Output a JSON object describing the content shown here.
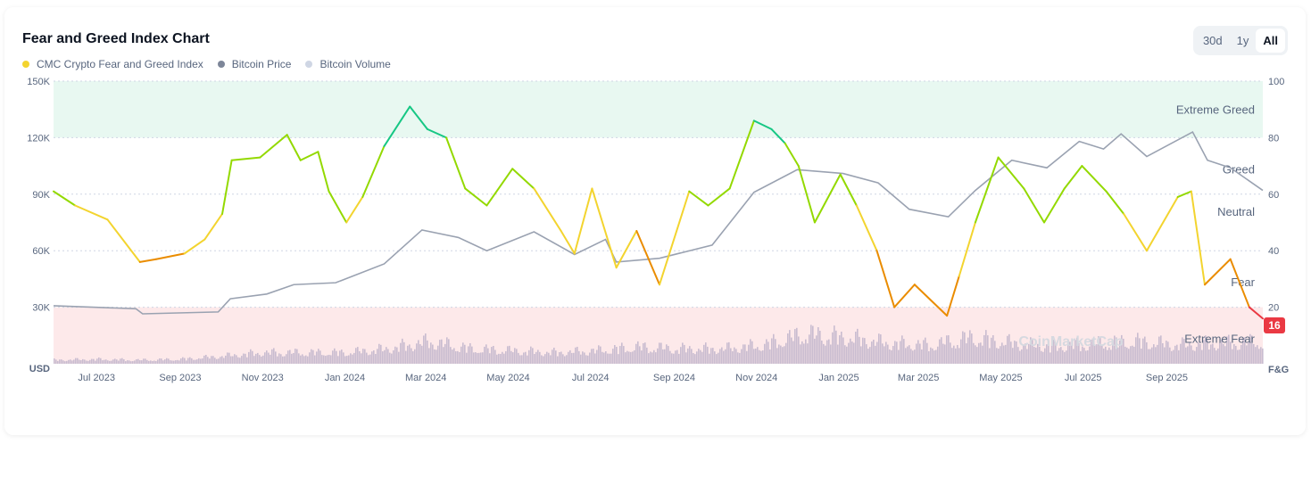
{
  "header": {
    "title": "Fear and Greed Index Chart",
    "ranges": [
      "30d",
      "1y",
      "All"
    ],
    "active_range": "All"
  },
  "legend": [
    {
      "label": "CMC Crypto Fear and Greed Index",
      "color": "#f3d42f"
    },
    {
      "label": "Bitcoin Price",
      "color": "#7d8699"
    },
    {
      "label": "Bitcoin Volume",
      "color": "#cfd6e4"
    }
  ],
  "watermark": "CoinMarketCap",
  "chart_data": {
    "type": "line",
    "x_range": [
      "2023-06-15",
      "2025-11-27"
    ],
    "x_ticks": [
      [
        "2023-07-01",
        "Jul 2023"
      ],
      [
        "2023-09-01",
        "Sep 2023"
      ],
      [
        "2023-11-01",
        "Nov 2023"
      ],
      [
        "2024-01-01",
        "Jan 2024"
      ],
      [
        "2024-03-01",
        "Mar 2024"
      ],
      [
        "2024-05-01",
        "May 2024"
      ],
      [
        "2024-07-01",
        "Jul 2024"
      ],
      [
        "2024-09-01",
        "Sep 2024"
      ],
      [
        "2024-11-01",
        "Nov 2024"
      ],
      [
        "2025-01-01",
        "Jan 2025"
      ],
      [
        "2025-03-01",
        "Mar 2025"
      ],
      [
        "2025-05-01",
        "May 2025"
      ],
      [
        "2025-07-01",
        "Jul 2025"
      ],
      [
        "2025-09-01",
        "Sep 2025"
      ]
    ],
    "left_axis": {
      "label": "USD",
      "range": [
        0,
        150000
      ],
      "ticks": [
        [
          "30000",
          "30K"
        ],
        [
          "60000",
          "60K"
        ],
        [
          "90000",
          "90K"
        ],
        [
          "120000",
          "120K"
        ],
        [
          "150000",
          "150K"
        ]
      ]
    },
    "right_axis": {
      "label": "F&G",
      "range": [
        0,
        100
      ],
      "ticks": [
        "20",
        "40",
        "60",
        "80",
        "100"
      ]
    },
    "zones": [
      {
        "label": "Extreme Greed",
        "range": [
          80,
          100
        ],
        "color": "#e8f8f1"
      },
      {
        "label": "Greed",
        "value": 67
      },
      {
        "label": "Neutral",
        "value": 53
      },
      {
        "label": "Fear",
        "value": 29
      },
      {
        "label": "Extreme Fear",
        "range": [
          0,
          20
        ],
        "color": "#fde9ea"
      }
    ],
    "current_value": "16",
    "fg_colors": {
      "extreme_fear": "#ea3943",
      "fear": "#ea8c00",
      "neutral": "#f3d42f",
      "greed": "#93d900",
      "extreme_greed": "#16c784"
    },
    "series": [
      {
        "name": "CMC Crypto Fear and Greed Index",
        "axis": "right",
        "points": [
          [
            "2023-06-15",
            61
          ],
          [
            "2023-07-01",
            56
          ],
          [
            "2023-07-25",
            51
          ],
          [
            "2023-08-18",
            36
          ],
          [
            "2023-08-30",
            37
          ],
          [
            "2023-09-20",
            39
          ],
          [
            "2023-10-05",
            44
          ],
          [
            "2023-10-18",
            53
          ],
          [
            "2023-10-25",
            72
          ],
          [
            "2023-11-15",
            73
          ],
          [
            "2023-12-05",
            81
          ],
          [
            "2023-12-15",
            72
          ],
          [
            "2023-12-28",
            75
          ],
          [
            "2024-01-05",
            61
          ],
          [
            "2024-01-18",
            50
          ],
          [
            "2024-01-30",
            59
          ],
          [
            "2024-02-15",
            77
          ],
          [
            "2024-03-05",
            91
          ],
          [
            "2024-03-18",
            83
          ],
          [
            "2024-04-01",
            80
          ],
          [
            "2024-04-15",
            62
          ],
          [
            "2024-05-01",
            56
          ],
          [
            "2024-05-20",
            69
          ],
          [
            "2024-06-05",
            62
          ],
          [
            "2024-06-25",
            47
          ],
          [
            "2024-07-05",
            39
          ],
          [
            "2024-07-18",
            62
          ],
          [
            "2024-08-05",
            34
          ],
          [
            "2024-08-20",
            47
          ],
          [
            "2024-09-06",
            28
          ],
          [
            "2024-09-28",
            61
          ],
          [
            "2024-10-12",
            56
          ],
          [
            "2024-10-28",
            62
          ],
          [
            "2024-11-15",
            86
          ],
          [
            "2024-11-28",
            83
          ],
          [
            "2024-12-08",
            78
          ],
          [
            "2024-12-18",
            70
          ],
          [
            "2024-12-30",
            50
          ],
          [
            "2025-01-18",
            67
          ],
          [
            "2025-01-30",
            56
          ],
          [
            "2025-02-14",
            40
          ],
          [
            "2025-02-27",
            20
          ],
          [
            "2025-03-14",
            28
          ],
          [
            "2025-04-07",
            17
          ],
          [
            "2025-04-16",
            31
          ],
          [
            "2025-04-28",
            50
          ],
          [
            "2025-05-15",
            73
          ],
          [
            "2025-06-03",
            62
          ],
          [
            "2025-06-18",
            50
          ],
          [
            "2025-07-03",
            62
          ],
          [
            "2025-07-16",
            70
          ],
          [
            "2025-08-03",
            61
          ],
          [
            "2025-08-16",
            53
          ],
          [
            "2025-09-02",
            40
          ],
          [
            "2025-09-25",
            59
          ],
          [
            "2025-10-05",
            61
          ],
          [
            "2025-10-15",
            28
          ],
          [
            "2025-11-03",
            37
          ],
          [
            "2025-11-17",
            20
          ],
          [
            "2025-11-27",
            16
          ]
        ]
      },
      {
        "name": "Bitcoin Price",
        "axis": "left",
        "points": [
          [
            "2023-06-15",
            30800
          ],
          [
            "2023-08-15",
            29200
          ],
          [
            "2023-08-20",
            26500
          ],
          [
            "2023-10-15",
            27500
          ],
          [
            "2023-10-24",
            34500
          ],
          [
            "2023-11-20",
            37000
          ],
          [
            "2023-12-10",
            42000
          ],
          [
            "2024-01-10",
            43000
          ],
          [
            "2024-02-15",
            53000
          ],
          [
            "2024-03-14",
            71000
          ],
          [
            "2024-04-10",
            67000
          ],
          [
            "2024-05-01",
            60000
          ],
          [
            "2024-06-05",
            70000
          ],
          [
            "2024-07-05",
            58000
          ],
          [
            "2024-07-28",
            66000
          ],
          [
            "2024-08-05",
            54000
          ],
          [
            "2024-09-06",
            56000
          ],
          [
            "2024-10-15",
            63000
          ],
          [
            "2024-11-15",
            91000
          ],
          [
            "2024-12-17",
            103000
          ],
          [
            "2025-01-20",
            101000
          ],
          [
            "2025-02-15",
            96000
          ],
          [
            "2025-03-10",
            82000
          ],
          [
            "2025-04-08",
            78000
          ],
          [
            "2025-04-28",
            92000
          ],
          [
            "2025-05-25",
            108000
          ],
          [
            "2025-06-20",
            104000
          ],
          [
            "2025-07-14",
            118000
          ],
          [
            "2025-08-01",
            114000
          ],
          [
            "2025-08-14",
            122000
          ],
          [
            "2025-09-02",
            110000
          ],
          [
            "2025-10-06",
            123000
          ],
          [
            "2025-10-17",
            108000
          ],
          [
            "2025-11-03",
            104000
          ],
          [
            "2025-11-27",
            92000
          ]
        ]
      },
      {
        "name": "Bitcoin Volume",
        "relative_monthly": [
          0.1,
          0.12,
          0.1,
          0.12,
          0.2,
          0.3,
          0.3,
          0.3,
          0.4,
          0.6,
          0.4,
          0.35,
          0.3,
          0.35,
          0.45,
          0.4,
          0.4,
          0.5,
          0.8,
          0.7,
          0.55,
          0.5,
          0.7,
          0.55,
          0.45,
          0.55,
          0.6,
          0.5,
          0.55,
          0.6
        ]
      }
    ]
  }
}
